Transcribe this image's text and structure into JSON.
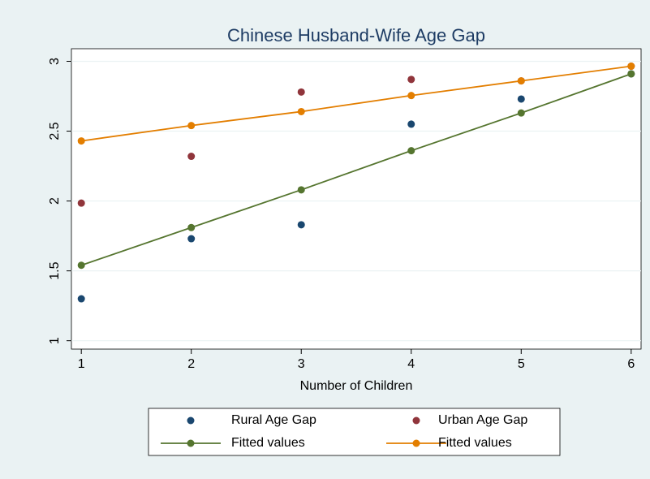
{
  "chart_data": {
    "type": "scatter",
    "title": "Chinese Husband-Wife Age Gap",
    "x_label": "Number of Children",
    "x": [
      1,
      2,
      3,
      4,
      5,
      6
    ],
    "series": [
      {
        "name": "Rural Age Gap",
        "type": "scatter",
        "color": "#1a476f",
        "values": [
          1.3,
          1.73,
          1.83,
          2.55,
          2.73,
          2.91
        ]
      },
      {
        "name": "Urban Age Gap",
        "type": "scatter",
        "color": "#90353b",
        "values": [
          1.985,
          2.32,
          2.78,
          2.87,
          2.86,
          2.965
        ]
      },
      {
        "name": "Fitted values",
        "type": "line",
        "color": "#55752f",
        "values": [
          1.54,
          1.81,
          2.08,
          2.36,
          2.63,
          2.91
        ]
      },
      {
        "name": "Fitted values",
        "type": "line",
        "color": "#e37e00",
        "values": [
          2.43,
          2.54,
          2.64,
          2.755,
          2.86,
          2.965
        ]
      }
    ],
    "xlim": [
      0.91,
      6.09
    ],
    "xticks": [
      1,
      2,
      3,
      4,
      5,
      6
    ],
    "ylim": [
      0.94,
      3.09
    ],
    "yticks": [
      1,
      1.5,
      2,
      2.5,
      3
    ],
    "grid": true,
    "legend": "bottom"
  }
}
